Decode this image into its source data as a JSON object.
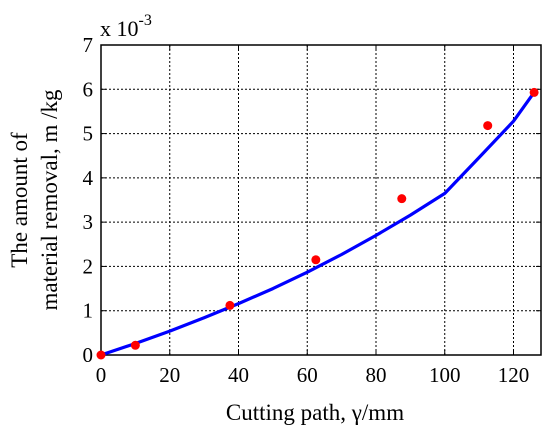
{
  "chart_data": {
    "type": "line",
    "xlabel": "Cutting path,  γ/mm",
    "ylabel_lines": [
      "The amount of",
      "material removal,  m /kg"
    ],
    "y_multiplier": {
      "base": "x 10",
      "exponent": "-3"
    },
    "xlim": [
      0,
      128
    ],
    "ylim": [
      0,
      7
    ],
    "x_ticks": [
      "0",
      "20",
      "40",
      "60",
      "80",
      "100",
      "120"
    ],
    "y_ticks": [
      "0",
      "1",
      "2",
      "3",
      "4",
      "5",
      "6",
      "7"
    ],
    "grid": true,
    "series": [
      {
        "kind": "points",
        "color": "#ff0000",
        "x": [
          0,
          10,
          37.5,
          62.5,
          87.5,
          112.5,
          126
        ],
        "y": [
          0,
          0.22,
          1.12,
          2.15,
          3.53,
          5.18,
          5.93
        ]
      },
      {
        "kind": "curve",
        "color": "#0000ff",
        "x": [
          0,
          10,
          20,
          30,
          40,
          50,
          60,
          70,
          80,
          90,
          100,
          110,
          120,
          126
        ],
        "y": [
          0,
          0.26,
          0.54,
          0.84,
          1.16,
          1.5,
          1.87,
          2.27,
          2.7,
          3.16,
          3.65,
          4.46,
          5.28,
          5.93
        ]
      }
    ]
  }
}
